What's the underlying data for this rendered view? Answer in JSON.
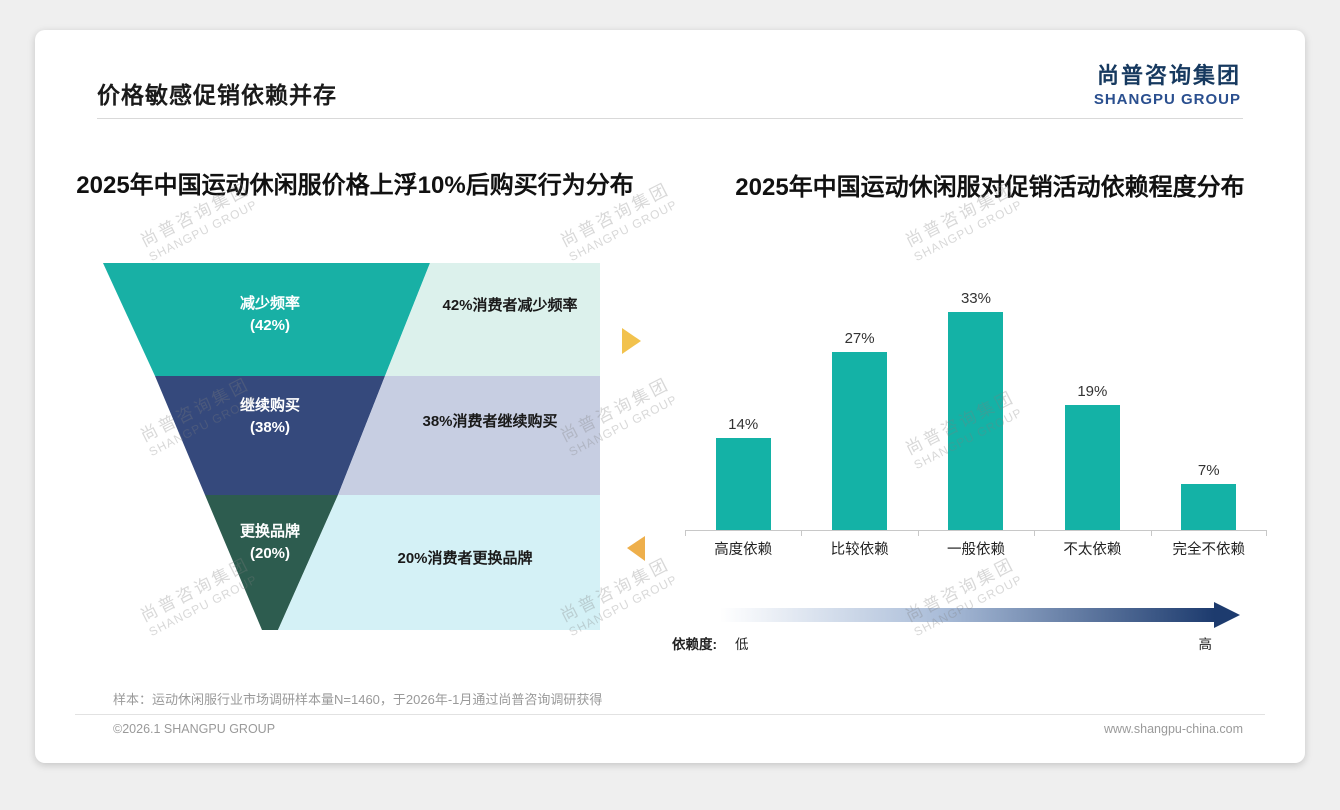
{
  "slide": {
    "title": "价格敏感促销依赖并存",
    "footer": {
      "sample_note": "样本：运动休闲服行业市场调研样本量N=1460，于2026年-1月通过尚普咨询调研获得",
      "copyright": "©2026.1 SHANGPU GROUP",
      "website": "www.shangpu-china.com"
    }
  },
  "logo": {
    "cn": "尚普咨询集团",
    "en": "SHANGPU GROUP"
  },
  "watermark": {
    "cn": "尚普咨询集团",
    "en": "SHANGPU GROUP"
  },
  "chart_data": [
    {
      "type": "funnel",
      "title": "2025年中国运动休闲服价格上浮10%后购买行为分布",
      "segments": [
        {
          "label": "减少频率",
          "pct": "(42%)",
          "value": 42,
          "desc": "42%消费者减少频率",
          "color": "#18b0a5",
          "desc_bg": "#dcf1ec"
        },
        {
          "label": "继续购买",
          "pct": "(38%)",
          "value": 38,
          "desc": "38%消费者继续购买",
          "color": "#35497c",
          "desc_bg": "#c7cee2"
        },
        {
          "label": "更换品牌",
          "pct": "(20%)",
          "value": 20,
          "desc": "20%消费者更换品牌",
          "color": "#2d5c4f",
          "desc_bg": "#d4f1f6"
        }
      ],
      "accent_arrow_right_color": "#f2c24d",
      "accent_arrow_left_color": "#eeaf4b"
    },
    {
      "type": "bar",
      "title": "2025年中国运动休闲服对促销活动依赖程度分布",
      "categories": [
        "高度依赖",
        "比较依赖",
        "一般依赖",
        "不太依赖",
        "完全不依赖"
      ],
      "values": [
        14,
        27,
        33,
        19,
        7
      ],
      "value_labels": [
        "14%",
        "27%",
        "33%",
        "19%",
        "7%"
      ],
      "bar_color": "#14b2a6",
      "ylim": [
        0,
        35
      ],
      "grid": false,
      "legend": {
        "label": "依赖度:",
        "low": "低",
        "high": "高"
      }
    }
  ]
}
